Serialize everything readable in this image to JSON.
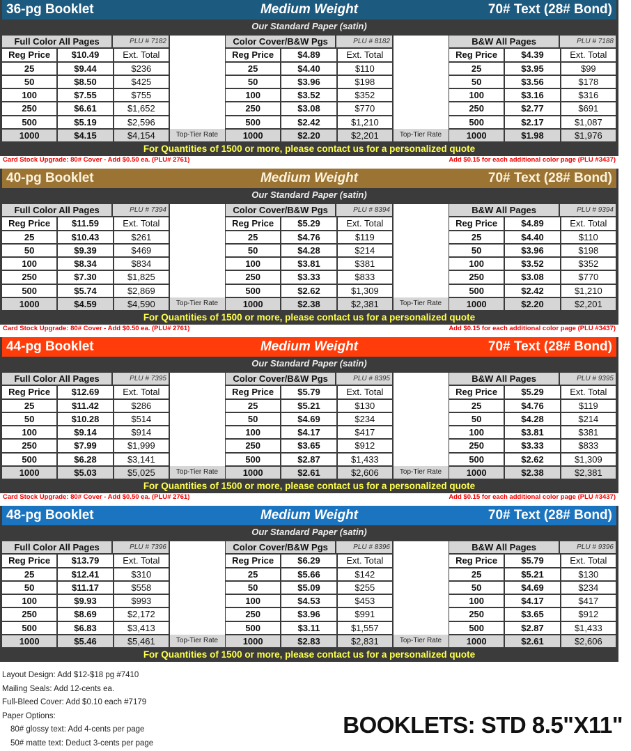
{
  "sections": [
    {
      "title": "36-pg Booklet",
      "weight": "Medium Weight",
      "paper_spec": "70# Text (28# Bond)",
      "paper": "Our Standard Paper (satin)",
      "color": "#1d5a80",
      "groups": [
        {
          "name": "Full Color All Pages",
          "plu": "PLU # 7182",
          "reg": "$10.49",
          "rows": [
            [
              "25",
              "$9.44",
              "$236"
            ],
            [
              "50",
              "$8.50",
              "$425"
            ],
            [
              "100",
              "$7.55",
              "$755"
            ],
            [
              "250",
              "$6.61",
              "$1,652"
            ],
            [
              "500",
              "$5.19",
              "$2,596"
            ],
            [
              "1000",
              "$4.15",
              "$4,154"
            ]
          ]
        },
        {
          "name": "Color Cover/B&W Pgs",
          "plu": "PLU # 8182",
          "reg": "$4.89",
          "rows": [
            [
              "25",
              "$4.40",
              "$110"
            ],
            [
              "50",
              "$3.96",
              "$198"
            ],
            [
              "100",
              "$3.52",
              "$352"
            ],
            [
              "250",
              "$3.08",
              "$770"
            ],
            [
              "500",
              "$2.42",
              "$1,210"
            ],
            [
              "1000",
              "$2.20",
              "$2,201"
            ]
          ]
        },
        {
          "name": "B&W All Pages",
          "plu": "PLU # 7188",
          "reg": "$4.39",
          "rows": [
            [
              "25",
              "$3.95",
              "$99"
            ],
            [
              "50",
              "$3.56",
              "$178"
            ],
            [
              "100",
              "$3.16",
              "$316"
            ],
            [
              "250",
              "$2.77",
              "$691"
            ],
            [
              "500",
              "$2.17",
              "$1,087"
            ],
            [
              "1000",
              "$1.98",
              "$1,976"
            ]
          ]
        }
      ],
      "note_left": "Card Stock Upgrade: 80# Cover - Add $0.50 ea. (PLU# 2761)",
      "note_right": "Add $0.15 for each additional color page (PLU #3437)"
    },
    {
      "title": "40-pg Booklet",
      "weight": "Medium Weight",
      "paper_spec": "70# Text (28# Bond)",
      "paper": "Our Standard Paper (satin)",
      "color": "#9b7434",
      "groups": [
        {
          "name": "Full Color All Pages",
          "plu": "PLU # 7394",
          "reg": "$11.59",
          "rows": [
            [
              "25",
              "$10.43",
              "$261"
            ],
            [
              "50",
              "$9.39",
              "$469"
            ],
            [
              "100",
              "$8.34",
              "$834"
            ],
            [
              "250",
              "$7.30",
              "$1,825"
            ],
            [
              "500",
              "$5.74",
              "$2,869"
            ],
            [
              "1000",
              "$4.59",
              "$4,590"
            ]
          ]
        },
        {
          "name": "Color Cover/B&W Pgs",
          "plu": "PLU # 8394",
          "reg": "$5.29",
          "rows": [
            [
              "25",
              "$4.76",
              "$119"
            ],
            [
              "50",
              "$4.28",
              "$214"
            ],
            [
              "100",
              "$3.81",
              "$381"
            ],
            [
              "250",
              "$3.33",
              "$833"
            ],
            [
              "500",
              "$2.62",
              "$1,309"
            ],
            [
              "1000",
              "$2.38",
              "$2,381"
            ]
          ]
        },
        {
          "name": "B&W All Pages",
          "plu": "PLU # 9394",
          "reg": "$4.89",
          "rows": [
            [
              "25",
              "$4.40",
              "$110"
            ],
            [
              "50",
              "$3.96",
              "$198"
            ],
            [
              "100",
              "$3.52",
              "$352"
            ],
            [
              "250",
              "$3.08",
              "$770"
            ],
            [
              "500",
              "$2.42",
              "$1,210"
            ],
            [
              "1000",
              "$2.20",
              "$2,201"
            ]
          ]
        }
      ],
      "note_left": "Card Stock Upgrade: 80# Cover - Add $0.50 ea. (PLU# 2761)",
      "note_right": "Add $0.15 for each additional color page (PLU #3437)"
    },
    {
      "title": "44-pg Booklet",
      "weight": "Medium Weight",
      "paper_spec": "70# Text (28# Bond)",
      "paper": "Our Standard Paper (satin)",
      "color": "#ff3c0a",
      "groups": [
        {
          "name": "Full Color All Pages",
          "plu": "PLU # 7395",
          "reg": "$12.69",
          "rows": [
            [
              "25",
              "$11.42",
              "$286"
            ],
            [
              "50",
              "$10.28",
              "$514"
            ],
            [
              "100",
              "$9.14",
              "$914"
            ],
            [
              "250",
              "$7.99",
              "$1,999"
            ],
            [
              "500",
              "$6.28",
              "$3,141"
            ],
            [
              "1000",
              "$5.03",
              "$5,025"
            ]
          ]
        },
        {
          "name": "Color Cover/B&W Pgs",
          "plu": "PLU # 8395",
          "reg": "$5.79",
          "rows": [
            [
              "25",
              "$5.21",
              "$130"
            ],
            [
              "50",
              "$4.69",
              "$234"
            ],
            [
              "100",
              "$4.17",
              "$417"
            ],
            [
              "250",
              "$3.65",
              "$912"
            ],
            [
              "500",
              "$2.87",
              "$1,433"
            ],
            [
              "1000",
              "$2.61",
              "$2,606"
            ]
          ]
        },
        {
          "name": "B&W All Pages",
          "plu": "PLU # 9395",
          "reg": "$5.29",
          "rows": [
            [
              "25",
              "$4.76",
              "$119"
            ],
            [
              "50",
              "$4.28",
              "$214"
            ],
            [
              "100",
              "$3.81",
              "$381"
            ],
            [
              "250",
              "$3.33",
              "$833"
            ],
            [
              "500",
              "$2.62",
              "$1,309"
            ],
            [
              "1000",
              "$2.38",
              "$2,381"
            ]
          ]
        }
      ],
      "note_left": "Card Stock Upgrade: 80# Cover - Add $0.50 ea. (PLU# 2761)",
      "note_right": "Add $0.15 for each additional color page (PLU #3437)"
    },
    {
      "title": "48-pg Booklet",
      "weight": "Medium Weight",
      "paper_spec": "70# Text (28# Bond)",
      "paper": "Our Standard Paper (satin)",
      "color": "#1a74bf",
      "groups": [
        {
          "name": "Full Color All Pages",
          "plu": "PLU # 7396",
          "reg": "$13.79",
          "rows": [
            [
              "25",
              "$12.41",
              "$310"
            ],
            [
              "50",
              "$11.17",
              "$558"
            ],
            [
              "100",
              "$9.93",
              "$993"
            ],
            [
              "250",
              "$8.69",
              "$2,172"
            ],
            [
              "500",
              "$6.83",
              "$3,413"
            ],
            [
              "1000",
              "$5.46",
              "$5,461"
            ]
          ]
        },
        {
          "name": "Color Cover/B&W Pgs",
          "plu": "PLU # 8396",
          "reg": "$6.29",
          "rows": [
            [
              "25",
              "$5.66",
              "$142"
            ],
            [
              "50",
              "$5.09",
              "$255"
            ],
            [
              "100",
              "$4.53",
              "$453"
            ],
            [
              "250",
              "$3.96",
              "$991"
            ],
            [
              "500",
              "$3.11",
              "$1,557"
            ],
            [
              "1000",
              "$2.83",
              "$2,831"
            ]
          ]
        },
        {
          "name": "B&W All Pages",
          "plu": "PLU # 9396",
          "reg": "$5.79",
          "rows": [
            [
              "25",
              "$5.21",
              "$130"
            ],
            [
              "50",
              "$4.69",
              "$234"
            ],
            [
              "100",
              "$4.17",
              "$417"
            ],
            [
              "250",
              "$3.65",
              "$912"
            ],
            [
              "500",
              "$2.87",
              "$1,433"
            ],
            [
              "1000",
              "$2.61",
              "$2,606"
            ]
          ]
        }
      ]
    }
  ],
  "labels": {
    "reg_price": "Reg Price",
    "ext_total": "Ext. Total",
    "top_tier": "Top-Tier Rate",
    "quote": "For Quantities of 1500 or more, please contact us for a personalized quote"
  },
  "footer": {
    "lines": [
      "Layout Design: Add $12-$18 pg #7410",
      "Mailing Seals: Add 12-cents ea.",
      "Full-Bleed Cover: Add $0.10 each #7179",
      "Paper Options:"
    ],
    "paper_options": [
      "80# glossy text: Add 4-cents per page",
      "50# matte text:  Deduct 3-cents per page"
    ],
    "heading": "BOOKLETS: STD 8.5\"X11\""
  }
}
